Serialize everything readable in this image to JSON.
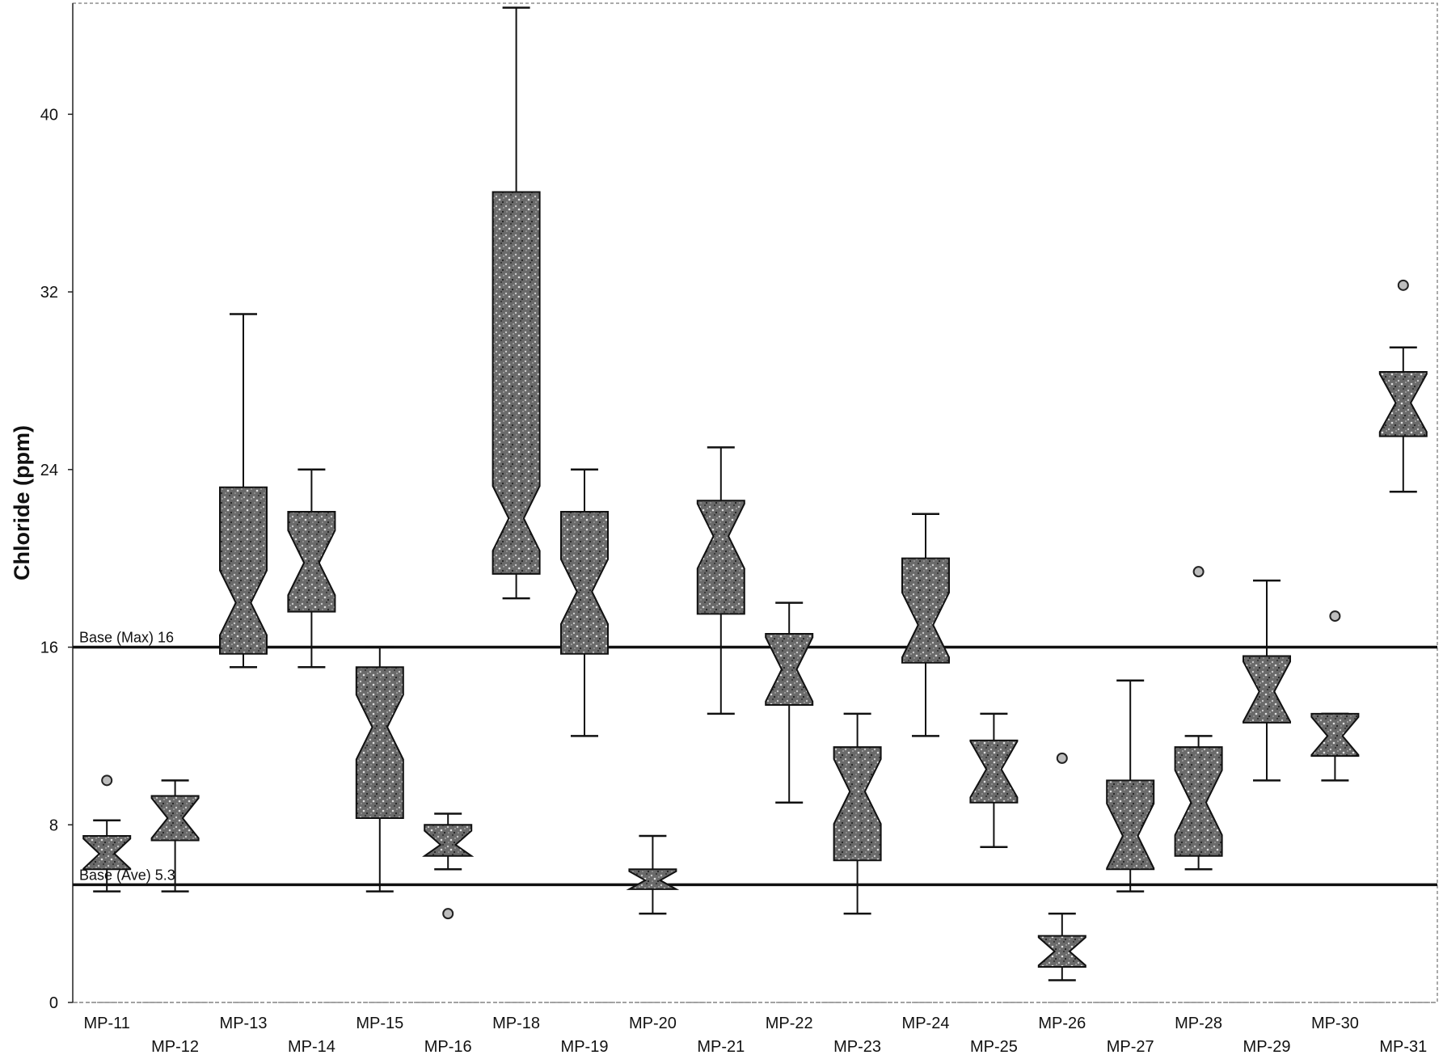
{
  "chart_data": {
    "type": "box",
    "ylabel": "Chloride  (ppm)",
    "ylim": [
      0,
      45
    ],
    "yticks": [
      0,
      8,
      16,
      24,
      32,
      40
    ],
    "grid": false,
    "box_fill": "#5e5e5e",
    "categories": [
      "MP-11",
      "MP-12",
      "MP-13",
      "MP-14",
      "MP-15",
      "MP-16",
      "MP-18",
      "MP-19",
      "MP-20",
      "MP-21",
      "MP-22",
      "MP-23",
      "MP-24",
      "MP-25",
      "MP-26",
      "MP-27",
      "MP-28",
      "MP-29",
      "MP-30",
      "MP-31"
    ],
    "boxes": [
      {
        "category": "MP-11",
        "whisker_low": 5.0,
        "q1": 6.0,
        "median": 6.7,
        "q3": 7.5,
        "whisker_high": 8.2,
        "outliers": [
          10.0
        ]
      },
      {
        "category": "MP-12",
        "whisker_low": 5.0,
        "q1": 7.3,
        "median": 8.3,
        "q3": 9.3,
        "whisker_high": 10.0,
        "outliers": []
      },
      {
        "category": "MP-13",
        "whisker_low": 15.1,
        "q1": 15.7,
        "median": 18.0,
        "q3": 23.2,
        "whisker_high": 31.0,
        "outliers": []
      },
      {
        "category": "MP-14",
        "whisker_low": 15.1,
        "q1": 17.6,
        "median": 19.8,
        "q3": 22.1,
        "whisker_high": 24.0,
        "outliers": []
      },
      {
        "category": "MP-15",
        "whisker_low": 5.0,
        "q1": 8.3,
        "median": 12.4,
        "q3": 15.1,
        "whisker_high": 16.0,
        "outliers": []
      },
      {
        "category": "MP-16",
        "whisker_low": 6.0,
        "q1": 6.6,
        "median": 7.1,
        "q3": 8.0,
        "whisker_high": 8.5,
        "outliers": [
          4.0
        ]
      },
      {
        "category": "MP-18",
        "whisker_low": 18.2,
        "q1": 19.3,
        "median": 21.8,
        "q3": 36.5,
        "whisker_high": 44.8,
        "outliers": []
      },
      {
        "category": "MP-19",
        "whisker_low": 12.0,
        "q1": 15.7,
        "median": 18.5,
        "q3": 22.1,
        "whisker_high": 24.0,
        "outliers": []
      },
      {
        "category": "MP-20",
        "whisker_low": 4.0,
        "q1": 5.1,
        "median": 5.5,
        "q3": 6.0,
        "whisker_high": 7.5,
        "outliers": []
      },
      {
        "category": "MP-21",
        "whisker_low": 13.0,
        "q1": 17.5,
        "median": 21.0,
        "q3": 22.6,
        "whisker_high": 25.0,
        "outliers": []
      },
      {
        "category": "MP-22",
        "whisker_low": 9.0,
        "q1": 13.4,
        "median": 15.0,
        "q3": 16.6,
        "whisker_high": 18.0,
        "outliers": []
      },
      {
        "category": "MP-23",
        "whisker_low": 4.0,
        "q1": 6.4,
        "median": 9.5,
        "q3": 11.5,
        "whisker_high": 13.0,
        "outliers": []
      },
      {
        "category": "MP-24",
        "whisker_low": 12.0,
        "q1": 15.3,
        "median": 17.0,
        "q3": 20.0,
        "whisker_high": 22.0,
        "outliers": []
      },
      {
        "category": "MP-25",
        "whisker_low": 7.0,
        "q1": 9.0,
        "median": 10.5,
        "q3": 11.8,
        "whisker_high": 13.0,
        "outliers": []
      },
      {
        "category": "MP-26",
        "whisker_low": 1.0,
        "q1": 1.6,
        "median": 2.3,
        "q3": 3.0,
        "whisker_high": 4.0,
        "outliers": [
          11.0
        ]
      },
      {
        "category": "MP-27",
        "whisker_low": 5.0,
        "q1": 6.0,
        "median": 7.5,
        "q3": 10.0,
        "whisker_high": 14.5,
        "outliers": []
      },
      {
        "category": "MP-28",
        "whisker_low": 6.0,
        "q1": 6.6,
        "median": 9.0,
        "q3": 11.5,
        "whisker_high": 12.0,
        "outliers": [
          19.4
        ]
      },
      {
        "category": "MP-29",
        "whisker_low": 10.0,
        "q1": 12.6,
        "median": 14.0,
        "q3": 15.6,
        "whisker_high": 19.0,
        "outliers": []
      },
      {
        "category": "MP-30",
        "whisker_low": 10.0,
        "q1": 11.1,
        "median": 12.0,
        "q3": 13.0,
        "whisker_high": 13.0,
        "outliers": [
          17.4
        ]
      },
      {
        "category": "MP-31",
        "whisker_low": 23.0,
        "q1": 25.5,
        "median": 27.0,
        "q3": 28.4,
        "whisker_high": 29.5,
        "outliers": [
          32.3
        ]
      }
    ],
    "reference_lines": [
      {
        "label": "Base (Max) 16",
        "value": 16.0
      },
      {
        "label": "Base (Ave) 5.3",
        "value": 5.3
      }
    ]
  }
}
